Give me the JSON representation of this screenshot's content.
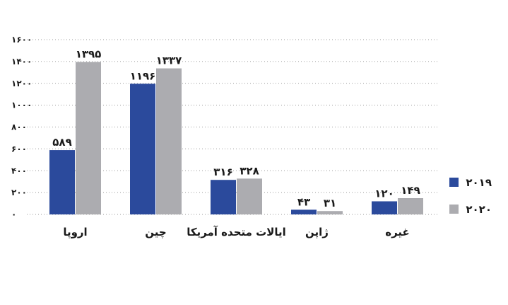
{
  "chart_data": {
    "type": "bar",
    "categories": [
      "اروپا",
      "چین",
      "ایالات متحده آمریکا",
      "ژاپن",
      "غیره"
    ],
    "series": [
      {
        "name": "۲۰۱۹",
        "color": "#2b4a9c",
        "values": [
          589,
          1196,
          316,
          43,
          120
        ],
        "value_labels": [
          "۵۸۹",
          "۱۱۹۶",
          "۳۱۶",
          "۴۳",
          "۱۲۰"
        ]
      },
      {
        "name": "۲۰۲۰",
        "color": "#acacb0",
        "values": [
          1395,
          1337,
          328,
          31,
          149
        ],
        "value_labels": [
          "۱۳۹۵",
          "۱۳۳۷",
          "۳۲۸",
          "۳۱",
          "۱۴۹"
        ]
      }
    ],
    "yticks": [
      0,
      200,
      400,
      600,
      800,
      1000,
      1200,
      1400,
      1600
    ],
    "ytick_labels": [
      "۰",
      "۲۰۰",
      "۴۰۰",
      "۶۰۰",
      "۸۰۰",
      "۱۰۰۰",
      "۱۲۰۰",
      "۱۴۰۰",
      "۱۶۰۰"
    ],
    "ylim": [
      0,
      1600
    ],
    "grid": "dotted horizontal",
    "legend_position": "right",
    "title": "",
    "xlabel": "",
    "ylabel": ""
  }
}
